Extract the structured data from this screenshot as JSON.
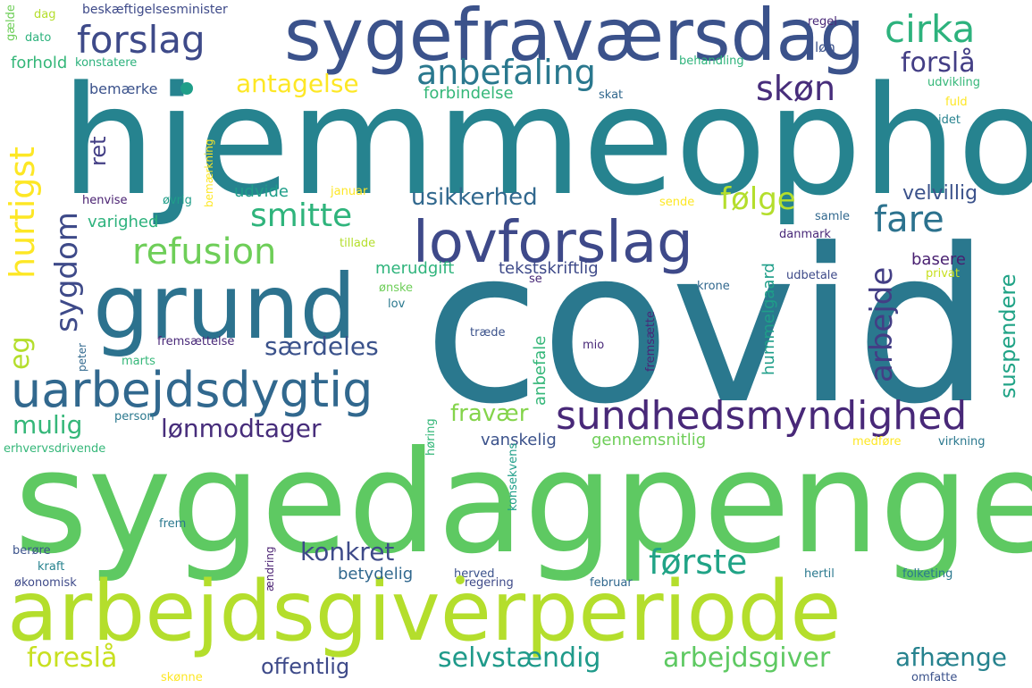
{
  "colors": {
    "background": "#ffffff",
    "palette": [
      "#440154",
      "#482677",
      "#3f4a8a",
      "#31688e",
      "#26838f",
      "#1f9e89",
      "#35b779",
      "#6cce59",
      "#b4de2c",
      "#fde725"
    ]
  },
  "words": {
    "hjemmeophold": "hjemmeophold",
    "covid": "covid",
    "sygedagpenge": "sygedagpenge",
    "arbejdsgiverperiode": "arbejdsgiverperiode",
    "sygefravaersdag": "sygefraværsdag",
    "grund": "grund",
    "lovforslag": "lovforslag",
    "uarbejdsdygtig": "uarbejdsdygtig",
    "forslag": "forslag",
    "anbefaling": "anbefaling",
    "cirka": "cirka",
    "refusion": "refusion",
    "smitte": "smitte",
    "sundhedsmyndighed": "sundhedsmyndighed",
    "skon": "skøn",
    "forsla": "forslå",
    "fare": "fare",
    "forste": "første",
    "foresla": "foreslå",
    "selvstaendig": "selvstændig",
    "arbejdsgiver": "arbejdsgiver",
    "afhaenge": "afhænge",
    "lonmodtager": "lønmodtager",
    "saerdeles": "særdeles",
    "konkret": "konkret",
    "antagelse": "antagelse",
    "folge": "følge",
    "usikkerhed": "usikkerhed",
    "velvillig": "velvillig",
    "fravaer": "fravær",
    "offentlig": "offentlig",
    "mulig": "mulig",
    "hurtigst": "hurtigst",
    "sygdom": "sygdom",
    "eg": "eg",
    "arbejde": "arbejde",
    "suspendere": "suspendere",
    "ret": "ret",
    "basere": "basere",
    "udvide": "udvide",
    "varighed": "varighed",
    "merudgift": "merudgift",
    "tekstskriftlig": "tekstskriftlig",
    "vanskelig": "vanskelig",
    "gennemsnitlig": "gennemsnitlig",
    "betydelig": "betydelig",
    "hummelgaard": "hummelgaard",
    "bemaerke": "bemærke",
    "forbindelse": "forbindelse",
    "beskaeftigelsesminister": "beskæftigelsesminister",
    "dag": "dag",
    "dato": "dato",
    "forhold": "forhold",
    "konstatere": "konstatere",
    "galde": "gælde",
    "regel": "regel",
    "lon": "løn",
    "behandling": "behandling",
    "udvikling": "udvikling",
    "skat": "skat",
    "fuld": "fuld",
    "idet": "idet",
    "henvise": "henvise",
    "ovrig": "øvrig",
    "bemaerkning": "bemærkning",
    "januar": "januar",
    "sende": "sende",
    "samle": "samle",
    "danmark": "danmark",
    "tillade": "tillade",
    "onske": "ønske",
    "krone": "krone",
    "se": "se",
    "privat": "privat",
    "udbetale": "udbetale",
    "lov": "lov",
    "traede": "træde",
    "mio": "mio",
    "fremsaettelse": "fremsættelse",
    "fremsaette": "fremsætte",
    "marts": "marts",
    "peter": "peter",
    "person": "person",
    "anbefale": "anbefale",
    "erhvervsdrivende": "erhvervsdrivende",
    "horing": "høring",
    "konsekvens": "konsekvens",
    "medfore": "medføre",
    "virkning": "virkning",
    "frem": "frem",
    "berore": "berøre",
    "kraft": "kraft",
    "okonomisk": "økonomisk",
    "aendring": "ændring",
    "herved": "herved",
    "regering": "regering",
    "februar": "februar",
    "hertil": "hertil",
    "folketing": "folketing",
    "omfatte": "omfatte",
    "skonne": "skønne"
  }
}
